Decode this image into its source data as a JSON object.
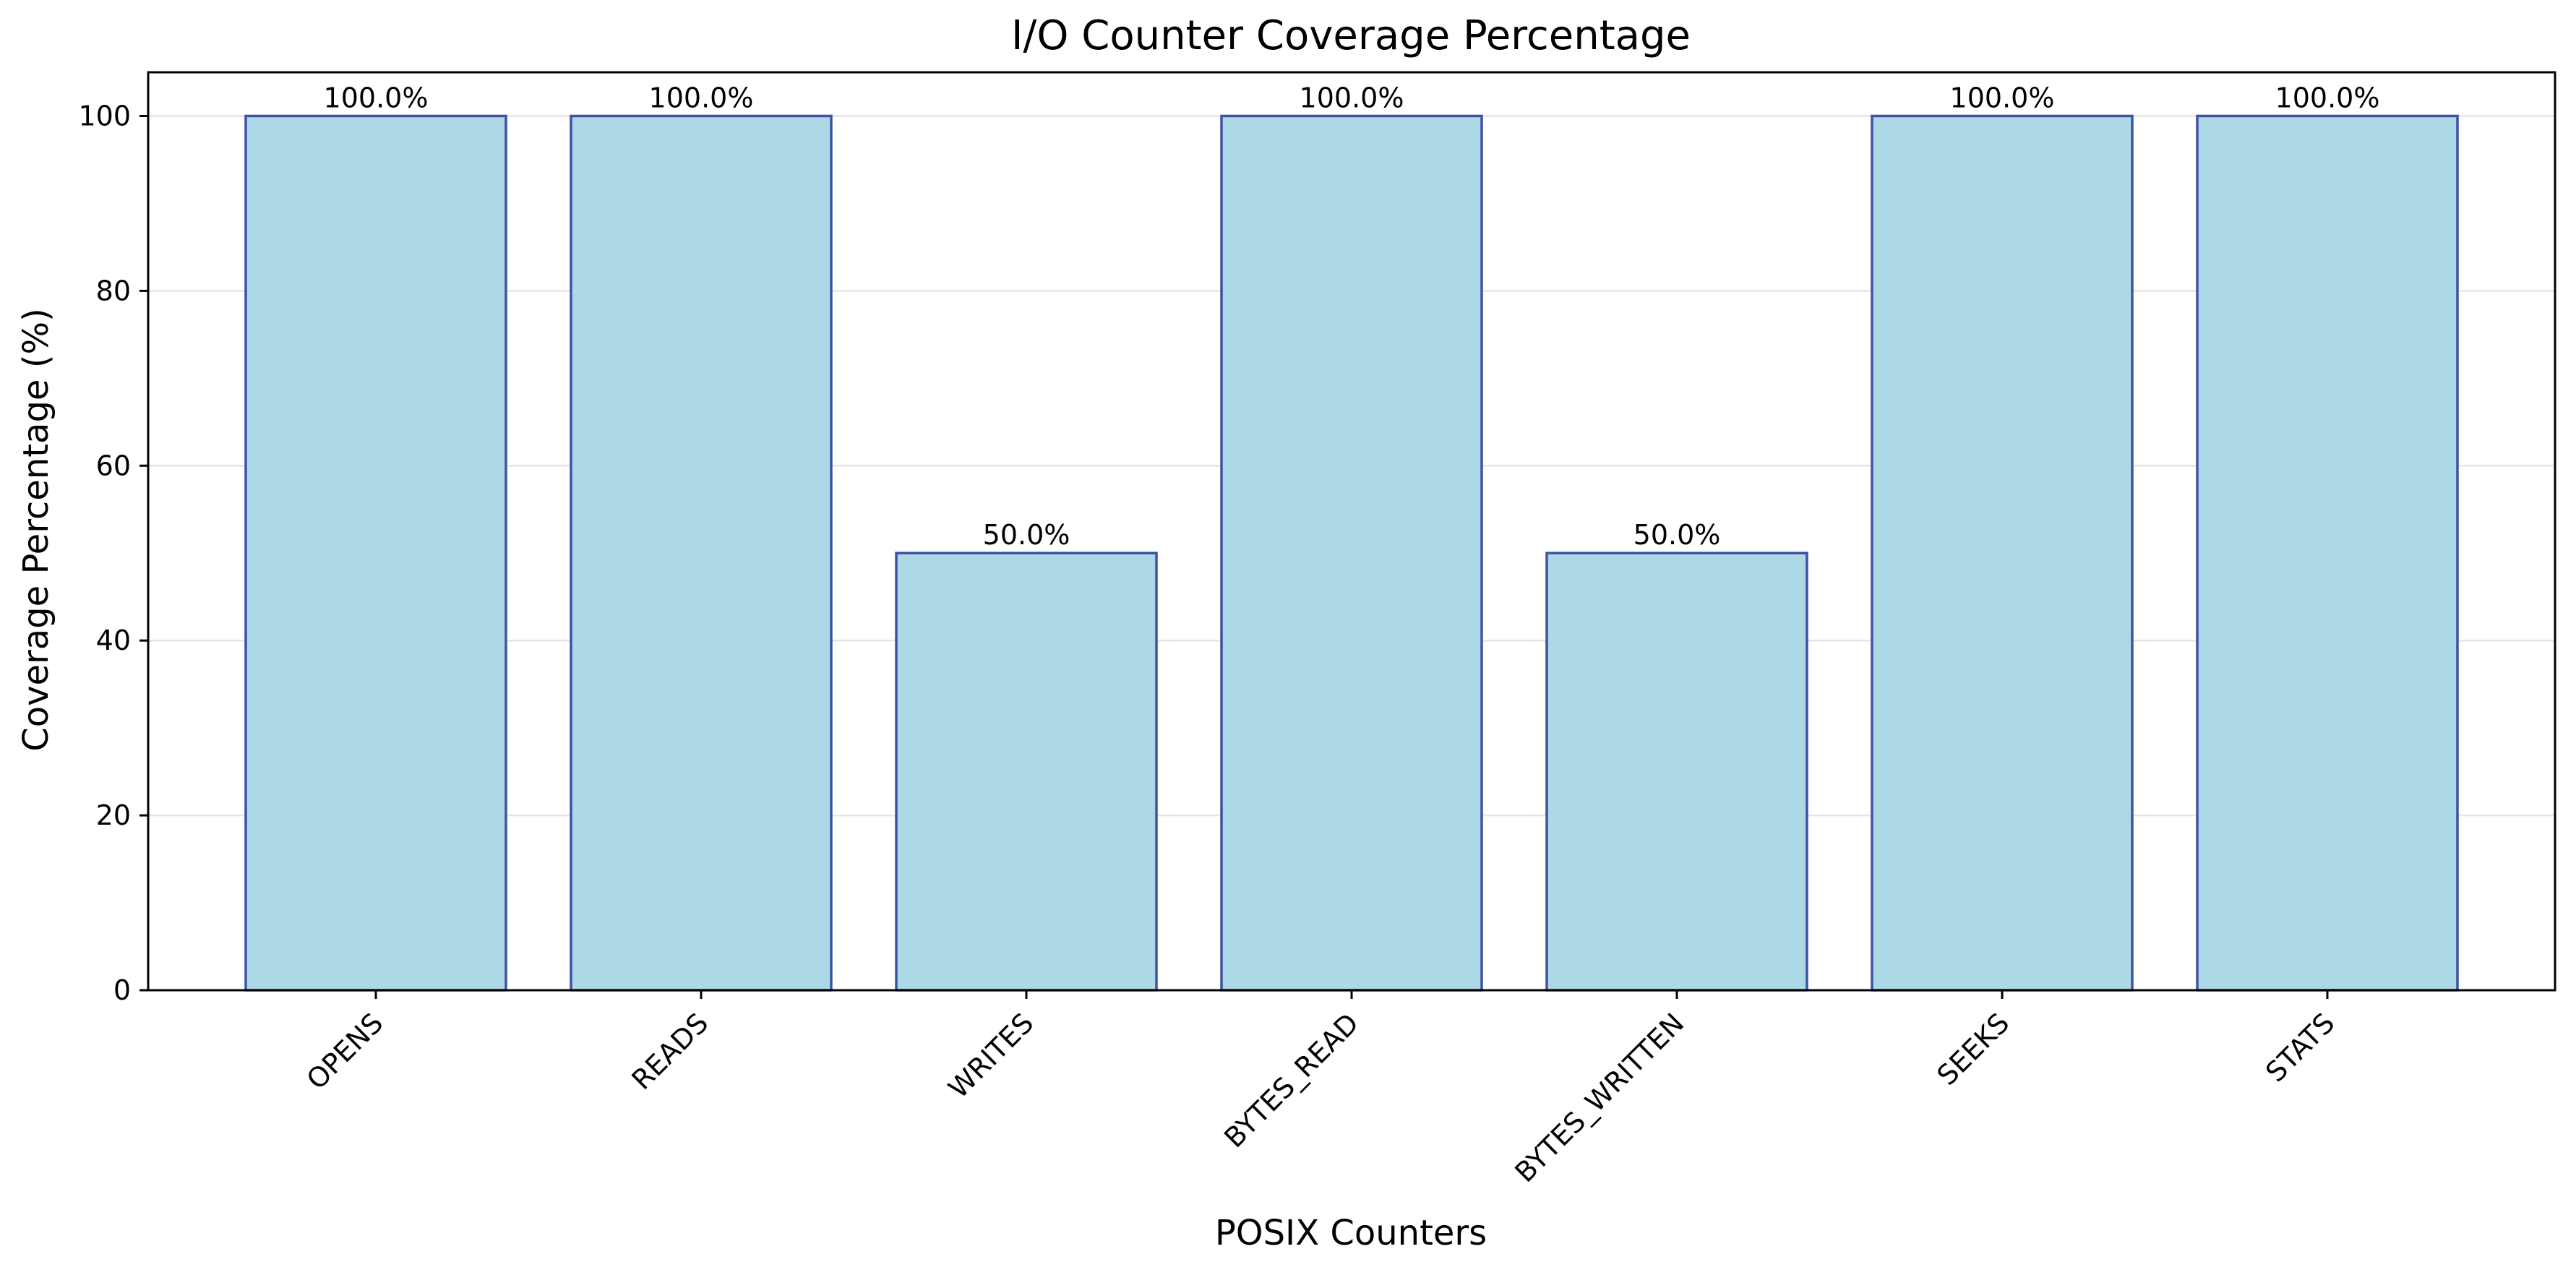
{
  "chart_data": {
    "type": "bar",
    "title": "I/O Counter Coverage Percentage",
    "xlabel": "POSIX Counters",
    "ylabel": "Coverage Percentage (%)",
    "categories": [
      "OPENS",
      "READS",
      "WRITES",
      "BYTES_READ",
      "BYTES_WRITTEN",
      "SEEKS",
      "STATS"
    ],
    "values": [
      100.0,
      100.0,
      50.0,
      100.0,
      50.0,
      100.0,
      100.0
    ],
    "value_labels": [
      "100.0%",
      "100.0%",
      "50.0%",
      "100.0%",
      "50.0%",
      "100.0%",
      "100.0%"
    ],
    "ylim": [
      0,
      105
    ],
    "yticks": [
      0,
      20,
      40,
      60,
      80,
      100
    ],
    "grid": "horizontal",
    "legend": "none",
    "bar_color": "#add8e6",
    "bar_edge_color": "#3f51a5",
    "grid_color": "#e6e6e6",
    "axis_color": "#000000"
  }
}
